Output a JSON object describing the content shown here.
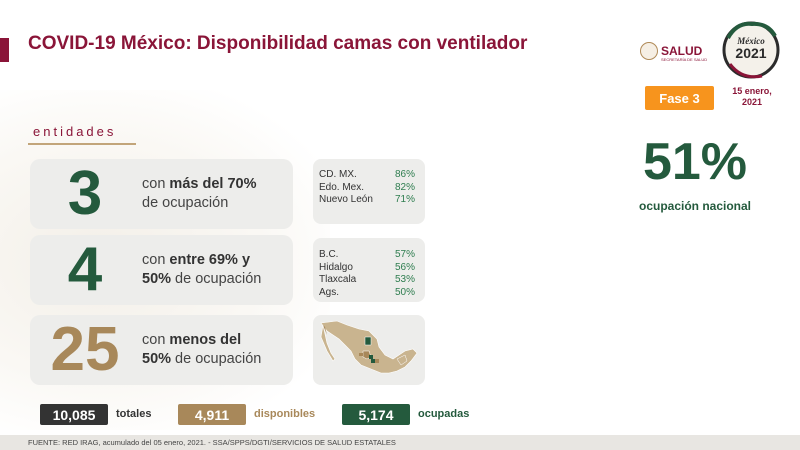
{
  "header": {
    "title": "COVID-19 México: Disponibilidad camas con ventilador",
    "salud_logo_text": "SALUD",
    "salud_logo_subtext": "SECRETARÍA DE SALUD",
    "seal_text_top": "México",
    "seal_text_year": "2021",
    "phase_badge": "Fase 3",
    "date_line1": "15 enero,",
    "date_line2": "2021"
  },
  "section_label": "entidades",
  "groups": [
    {
      "count": "3",
      "desc_prefix": "con ",
      "desc_bold": "más del 70%",
      "desc_line2": "de ocupación",
      "states": [
        {
          "name": "CD. MX.",
          "pct": "86%"
        },
        {
          "name": "Edo. Mex.",
          "pct": "82%"
        },
        {
          "name": "Nuevo León",
          "pct": "71%"
        }
      ]
    },
    {
      "count": "4",
      "desc_prefix": "con ",
      "desc_bold": "entre 69% y",
      "desc_line2_bold": "50%",
      "desc_line2": " de ocupación",
      "states": [
        {
          "name": "B.C.",
          "pct": "57%"
        },
        {
          "name": "Hidalgo",
          "pct": "56%"
        },
        {
          "name": "Tlaxcala",
          "pct": "53%"
        },
        {
          "name": "Ags.",
          "pct": "50%"
        }
      ]
    },
    {
      "count": "25",
      "desc_prefix": "con ",
      "desc_bold": "menos del",
      "desc_line2_bold": "50%",
      "desc_line2": " de ocupación"
    }
  ],
  "national": {
    "pct": "51%",
    "label": "ocupación nacional"
  },
  "totals": [
    {
      "value": "10,085",
      "label": "totales",
      "color": "#333333"
    },
    {
      "value": "4,911",
      "label": "disponibles",
      "color": "#a8885a"
    },
    {
      "value": "5,174",
      "label": "ocupadas",
      "color": "#245a3d"
    }
  ],
  "footer": "FUENTE: RED IRAG, acumulado del 05 enero, 2021. -  SSA/SPPS/DGTI/SERVICIOS DE SALUD ESTATALES",
  "colors": {
    "brand": "#8a1538",
    "green": "#245a3d",
    "gold": "#a8885a",
    "orange": "#f7941d",
    "map_high": "#245a3d",
    "map_mid": "#a8885a",
    "map_low": "#c9b48f"
  }
}
